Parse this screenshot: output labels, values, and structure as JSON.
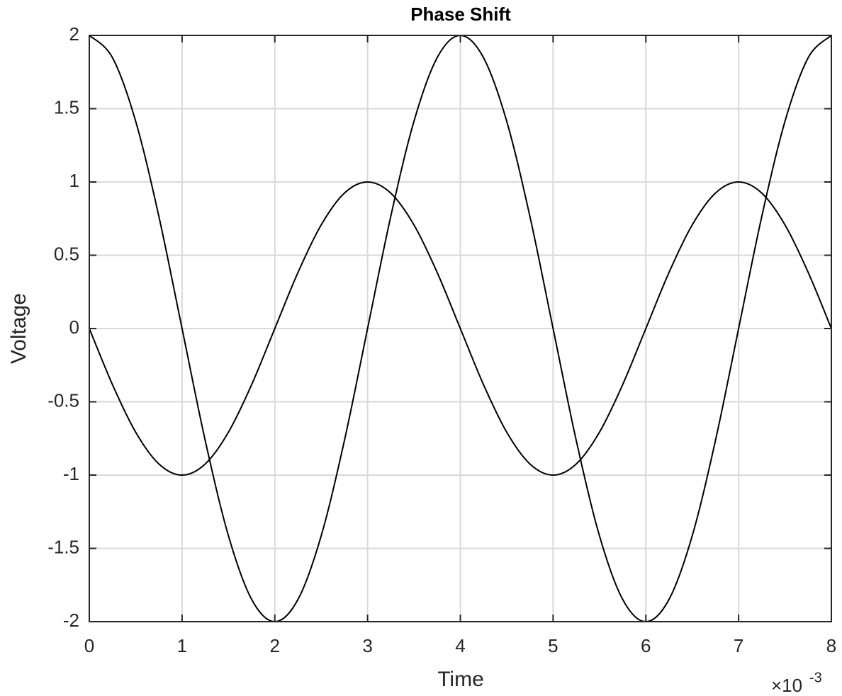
{
  "chart_data": {
    "type": "line",
    "title": "Phase Shift",
    "xlabel": "Time",
    "ylabel": "Voltage",
    "x_multiplier": "×10",
    "x_multiplier_exponent": "-3",
    "x": [
      0,
      0.25,
      0.5,
      0.75,
      1,
      1.25,
      1.5,
      1.75,
      2,
      2.25,
      2.5,
      2.75,
      3,
      3.25,
      3.5,
      3.75,
      4,
      4.25,
      4.5,
      4.75,
      5,
      5.25,
      5.5,
      5.75,
      6,
      6.25,
      6.5,
      6.75,
      7,
      7.25,
      7.5,
      7.75,
      8
    ],
    "series": [
      {
        "color": "#000000",
        "values": [
          2,
          1.848,
          1.414,
          0.765,
          0,
          -0.765,
          -1.414,
          -1.848,
          -2,
          -1.848,
          -1.414,
          -0.765,
          0,
          0.765,
          1.414,
          1.848,
          2,
          1.848,
          1.414,
          0.765,
          0,
          -0.765,
          -1.414,
          -1.848,
          -2,
          -1.848,
          -1.414,
          -0.765,
          0,
          0.765,
          1.414,
          1.848,
          2
        ]
      },
      {
        "color": "#000000",
        "values": [
          0,
          -0.383,
          -0.707,
          -0.924,
          -1,
          -0.924,
          -0.707,
          -0.383,
          0,
          0.383,
          0.707,
          0.924,
          1,
          0.924,
          0.707,
          0.383,
          0,
          -0.383,
          -0.707,
          -0.924,
          -1,
          -0.924,
          -0.707,
          -0.383,
          0,
          0.383,
          0.707,
          0.924,
          1,
          0.924,
          0.707,
          0.383,
          0
        ]
      }
    ],
    "xlim": [
      0,
      8
    ],
    "xticks": [
      0,
      1,
      2,
      3,
      4,
      5,
      6,
      7,
      8
    ],
    "ylim": [
      -2,
      2
    ],
    "yticks": [
      -2,
      -1.5,
      -1,
      -0.5,
      0,
      0.5,
      1,
      1.5,
      2
    ],
    "grid": true
  }
}
